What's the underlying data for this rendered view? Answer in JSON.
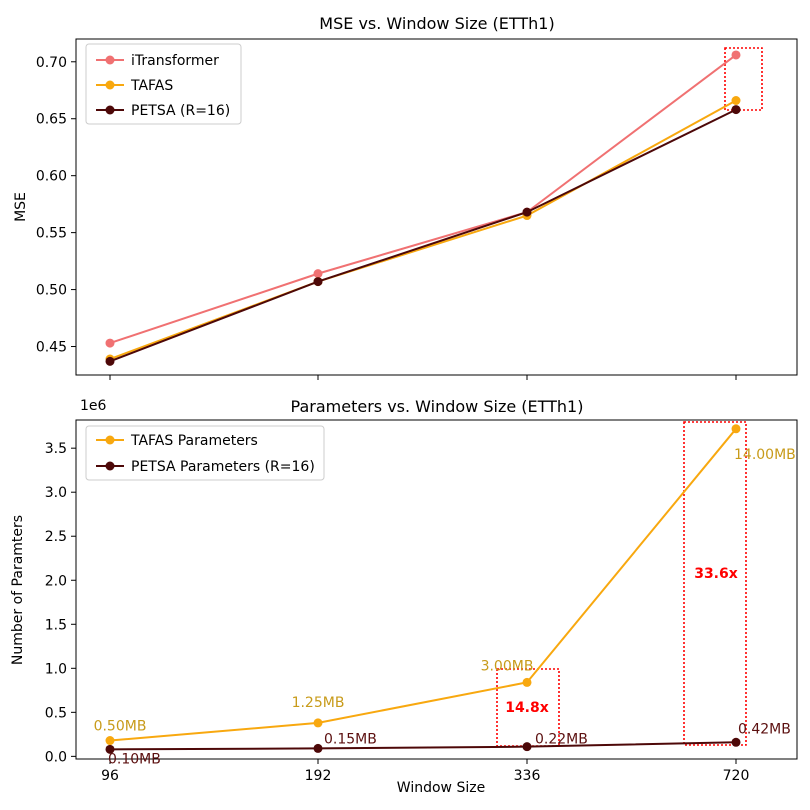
{
  "chart_data": [
    {
      "type": "line",
      "title": "MSE vs. Window Size (ETTh1)",
      "xlabel": "",
      "ylabel": "MSE",
      "categories": [
        "96",
        "192",
        "336",
        "720"
      ],
      "ylim": [
        0.425,
        0.72
      ],
      "yticks": [
        "0.45",
        "0.50",
        "0.55",
        "0.60",
        "0.65",
        "0.70"
      ],
      "yticks_values": [
        0.45,
        0.5,
        0.55,
        0.6,
        0.65,
        0.7
      ],
      "legend_position": "top-left",
      "series": [
        {
          "name": "iTransformer",
          "color": "#f07172",
          "values": [
            0.453,
            0.514,
            0.568,
            0.706
          ]
        },
        {
          "name": "TAFAS",
          "color": "#f8a80f",
          "values": [
            0.439,
            0.507,
            0.565,
            0.666
          ]
        },
        {
          "name": "PETSA (R=16)",
          "color": "#4d0808",
          "values": [
            0.437,
            0.507,
            0.568,
            0.658
          ]
        }
      ],
      "highlight_color": "#ff0000"
    },
    {
      "type": "line",
      "title": "Parameters vs. Window Size (ETTh1)",
      "xlabel": "Window Size",
      "ylabel": "Number of Paramters",
      "offset_label": "1e6",
      "categories": [
        "96",
        "192",
        "336",
        "720"
      ],
      "ylim": [
        -0.03,
        3.82
      ],
      "yticks": [
        "0.0",
        "0.5",
        "1.0",
        "1.5",
        "2.0",
        "2.5",
        "3.0",
        "3.5"
      ],
      "yticks_values": [
        0,
        0.5,
        1,
        1.5,
        2,
        2.5,
        3,
        3.5
      ],
      "legend_position": "top-left",
      "series": [
        {
          "name": "TAFAS Parameters",
          "color": "#f8a80f",
          "label_color": "#c89b1a",
          "values": [
            0.18,
            0.38,
            0.84,
            3.72
          ],
          "labels": [
            "0.50MB",
            "1.25MB",
            "3.00MB",
            "14.00MB"
          ]
        },
        {
          "name": "PETSA Parameters (R=16)",
          "color": "#4d0808",
          "label_color": "#5c1010",
          "values": [
            0.08,
            0.09,
            0.11,
            0.16
          ],
          "labels": [
            "0.10MB",
            "0.15MB",
            "0.22MB",
            "0.42MB"
          ]
        }
      ],
      "ratios": [
        {
          "category": "336",
          "text": "14.8x"
        },
        {
          "category": "720",
          "text": "33.6x"
        }
      ],
      "highlight_color": "#ff0000"
    }
  ]
}
